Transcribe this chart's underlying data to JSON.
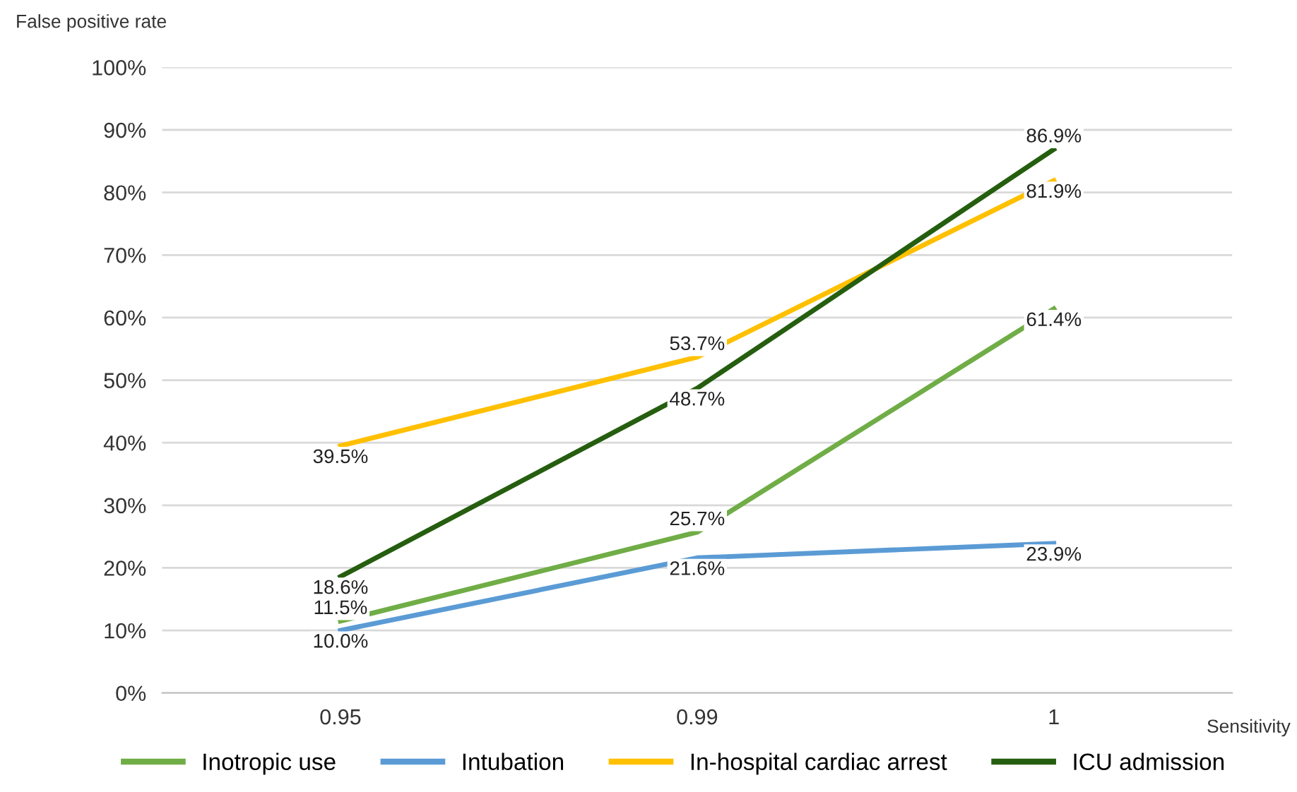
{
  "chart_data": {
    "type": "line",
    "ylabel": "False positive rate",
    "xlabel": "Sensitivity",
    "categories": [
      "0.95",
      "0.99",
      "1"
    ],
    "series": [
      {
        "name": "Inotropic use",
        "color": "#70ad47",
        "values": [
          11.5,
          25.7,
          61.4
        ],
        "value_labels": [
          "11.5%",
          "25.7%",
          "61.4%"
        ]
      },
      {
        "name": "Intubation",
        "color": "#5b9bd5",
        "values": [
          10.0,
          21.6,
          23.9
        ],
        "value_labels": [
          "10.0%",
          "21.6%",
          "23.9%"
        ]
      },
      {
        "name": "In-hospital cardiac arrest",
        "color": "#ffc000",
        "values": [
          39.5,
          53.7,
          81.9
        ],
        "value_labels": [
          "39.5%",
          "53.7%",
          "81.9%"
        ]
      },
      {
        "name": "ICU admission",
        "color": "#255e0f",
        "values": [
          18.6,
          48.7,
          86.9
        ],
        "value_labels": [
          "18.6%",
          "48.7%",
          "86.9%"
        ]
      }
    ],
    "ylim": [
      0,
      100
    ],
    "yticks": [
      {
        "value": 0,
        "label": "0%"
      },
      {
        "value": 10,
        "label": "10%"
      },
      {
        "value": 20,
        "label": "20%"
      },
      {
        "value": 30,
        "label": "30%"
      },
      {
        "value": 40,
        "label": "40%"
      },
      {
        "value": 50,
        "label": "50%"
      },
      {
        "value": 60,
        "label": "60%"
      },
      {
        "value": 70,
        "label": "70%"
      },
      {
        "value": 80,
        "label": "80%"
      },
      {
        "value": 90,
        "label": "90%"
      },
      {
        "value": 100,
        "label": "100%"
      }
    ],
    "grid": "y",
    "legend": "bottom",
    "marker": "none",
    "line_style": "solid"
  }
}
